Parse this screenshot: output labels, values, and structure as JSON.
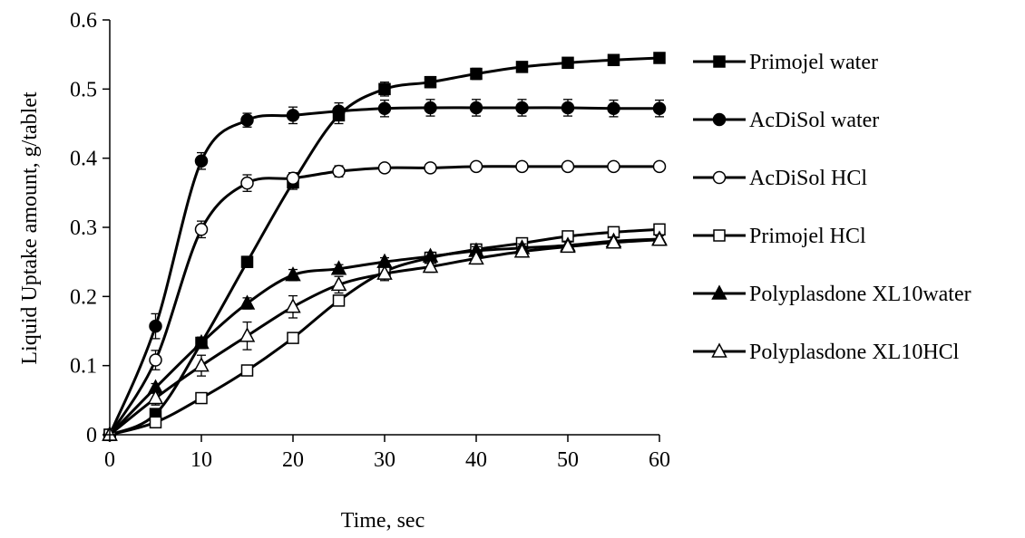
{
  "chart_data": {
    "type": "line",
    "xlabel": "Time, sec",
    "ylabel": "Liquid Uptake amount, g/tablet",
    "xlim": [
      0,
      60
    ],
    "ylim": [
      0,
      0.6
    ],
    "x_ticks": [
      "0",
      "10",
      "20",
      "30",
      "40",
      "50",
      "60"
    ],
    "y_ticks": [
      "0",
      "0.1",
      "0.2",
      "0.3",
      "0.4",
      "0.5",
      "0.6"
    ],
    "grid": false,
    "legend_position": "right",
    "x": [
      0,
      5,
      10,
      15,
      20,
      25,
      30,
      35,
      40,
      45,
      50,
      55,
      60
    ],
    "series": [
      {
        "name": "Primojel water",
        "marker": "square-filled",
        "values": [
          0,
          0.03,
          0.133,
          0.25,
          0.365,
          0.462,
          0.5,
          0.51,
          0.522,
          0.532,
          0.538,
          0.542,
          0.545
        ],
        "errors": [
          0,
          0.005,
          0.008,
          0.008,
          0.01,
          0.012,
          0.01,
          0.008,
          0.008,
          0.007,
          0.007,
          0.006,
          0.006
        ]
      },
      {
        "name": "AcDiSol water",
        "marker": "circle-filled",
        "values": [
          0,
          0.157,
          0.396,
          0.455,
          0.462,
          0.468,
          0.472,
          0.473,
          0.473,
          0.473,
          0.473,
          0.472,
          0.472
        ],
        "errors": [
          0,
          0.018,
          0.012,
          0.01,
          0.012,
          0.012,
          0.012,
          0.012,
          0.012,
          0.012,
          0.012,
          0.012,
          0.012
        ]
      },
      {
        "name": "AcDiSol HCl",
        "marker": "circle-open",
        "values": [
          0,
          0.108,
          0.297,
          0.364,
          0.371,
          0.381,
          0.386,
          0.386,
          0.388,
          0.388,
          0.388,
          0.388,
          0.388
        ],
        "errors": [
          0,
          0.014,
          0.012,
          0.012,
          0.008,
          0.008,
          0.006,
          0.006,
          0.006,
          0.004,
          0.004,
          0.004,
          0.004
        ]
      },
      {
        "name": "Primojel HCl",
        "marker": "square-open",
        "values": [
          0,
          0.018,
          0.053,
          0.093,
          0.14,
          0.194,
          0.236,
          0.256,
          0.268,
          0.277,
          0.287,
          0.293,
          0.297
        ],
        "errors": [
          0,
          0.004,
          0.004,
          0.005,
          0.005,
          0.005,
          0.005,
          0.005,
          0.005,
          0.005,
          0.005,
          0.005,
          0.005
        ]
      },
      {
        "name": "Polyplasdone XL10water",
        "marker": "triangle-filled",
        "values": [
          0,
          0.068,
          0.133,
          0.19,
          0.231,
          0.24,
          0.25,
          0.258,
          0.266,
          0.27,
          0.274,
          0.28,
          0.283
        ],
        "errors": [
          0,
          0.006,
          0.008,
          0.008,
          0.008,
          0.006,
          0.006,
          0.006,
          0.006,
          0.006,
          0.006,
          0.006,
          0.006
        ]
      },
      {
        "name": "Polyplasdone XL10HCl",
        "marker": "triangle-open",
        "values": [
          0,
          0.053,
          0.1,
          0.143,
          0.185,
          0.217,
          0.233,
          0.243,
          0.255,
          0.265,
          0.272,
          0.278,
          0.282
        ],
        "errors": [
          0,
          0.01,
          0.015,
          0.02,
          0.016,
          0.012,
          0.01,
          0.008,
          0.008,
          0.008,
          0.007,
          0.007,
          0.006
        ]
      }
    ]
  }
}
